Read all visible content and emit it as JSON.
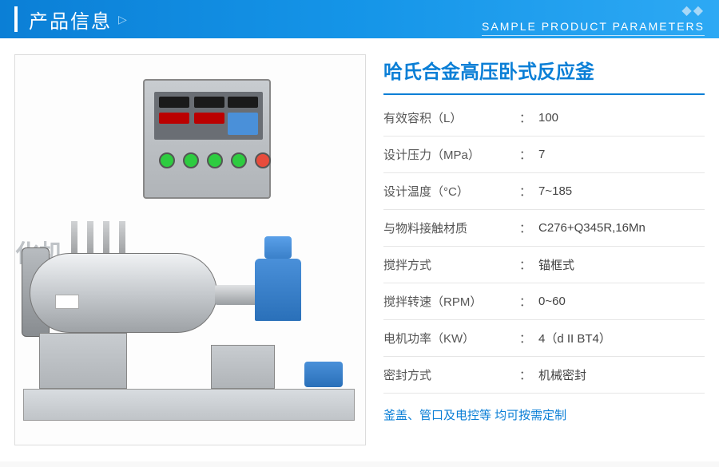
{
  "header": {
    "title": "产品信息",
    "subtitle": "SAMPLE PRODUCT PARAMETERS",
    "accent_color": "#0b7fd6",
    "gradient_start": "#0b7fd6",
    "gradient_end": "#2da9f4"
  },
  "product": {
    "title": "哈氏合金高压卧式反应釜",
    "watermark": "化机",
    "footnote": "釜盖、管口及电控等 均可按需定制",
    "image_alt": "horizontal high-pressure reactor with control cabinet"
  },
  "specs": [
    {
      "label": "有效容积（L）",
      "value": "100"
    },
    {
      "label": "设计压力（MPa）",
      "value": "7"
    },
    {
      "label": "设计温度（°C）",
      "value": "7~185"
    },
    {
      "label": "与物料接触材质",
      "value": "C276+Q345R,16Mn"
    },
    {
      "label": "搅拌方式",
      "value": "锚框式"
    },
    {
      "label": "搅拌转速（RPM）",
      "value": "0~60"
    },
    {
      "label": "电机功率（KW）",
      "value": "4（d II BT4）"
    },
    {
      "label": "密封方式",
      "value": "机械密封"
    }
  ],
  "colors": {
    "primary": "#0b7fd6",
    "text": "#555555",
    "divider": "#e6e6e6",
    "panel_border": "#dcdcdc",
    "motor_blue": "#4a90d9"
  }
}
